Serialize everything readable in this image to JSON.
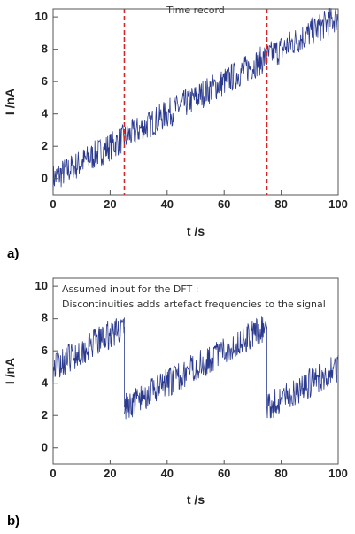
{
  "panel_labels": {
    "a": "a)",
    "b": "b)"
  },
  "chart_data": [
    {
      "type": "line",
      "panel": "a)",
      "title": "Time record",
      "xlabel": "t /s",
      "ylabel": "I /nA",
      "xlim": [
        0,
        100
      ],
      "ylim": [
        -1,
        10.5
      ],
      "xticks": [
        0,
        20,
        40,
        60,
        80,
        100
      ],
      "yticks": [
        0,
        2,
        4,
        6,
        8,
        10
      ],
      "grid": false,
      "series": [
        {
          "trend": {
            "x": [
              0,
              100
            ],
            "y": [
              0,
              10
            ]
          },
          "noise_amplitude": 0.9,
          "color": "#2b3a8f"
        }
      ],
      "markers": [
        {
          "x": 25,
          "style": "dashed",
          "color": "#d62728"
        },
        {
          "x": 75,
          "style": "dashed",
          "color": "#d62728"
        }
      ]
    },
    {
      "type": "line",
      "panel": "b)",
      "title": "",
      "annotation": [
        "Assumed input for the DFT :",
        "Discontinuities adds artefact frequencies to the signal"
      ],
      "xlabel": "t /s",
      "ylabel": "I /nA",
      "xlim": [
        0,
        100
      ],
      "ylim": [
        -1,
        10.5
      ],
      "xticks": [
        0,
        20,
        40,
        60,
        80,
        100
      ],
      "yticks": [
        0,
        2,
        4,
        6,
        8,
        10
      ],
      "grid": false,
      "series": [
        {
          "segments": [
            {
              "x": [
                0,
                25
              ],
              "y": [
                5,
                7.5
              ]
            },
            {
              "x": [
                25,
                75
              ],
              "y": [
                2.5,
                7.5
              ]
            },
            {
              "x": [
                75,
                100
              ],
              "y": [
                2.5,
                5
              ]
            }
          ],
          "noise_amplitude": 0.9,
          "color": "#2b3a8f"
        }
      ]
    }
  ]
}
